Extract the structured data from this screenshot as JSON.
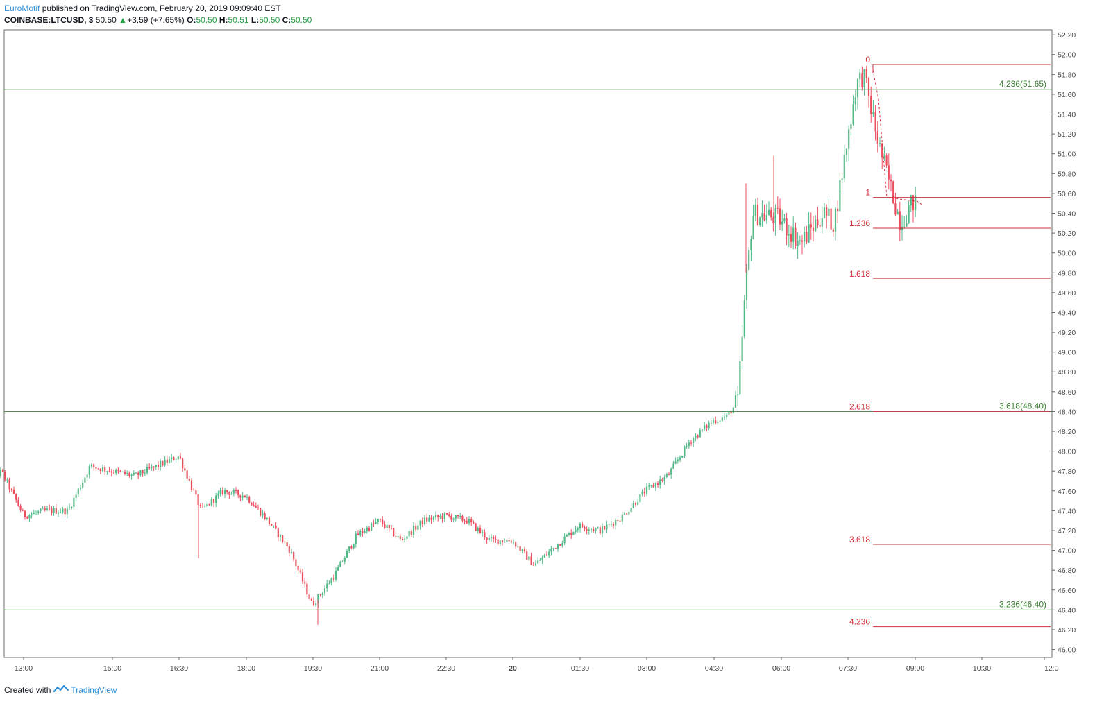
{
  "header": {
    "author": "EuroMotif",
    "published": " published on TradingView.com, February 20, 2019 09:09:40 EST",
    "symbol": "COINBASE:LTCUSD, 3",
    "last": "50.50",
    "change": "+3.59 (+7.65%)",
    "o_label": "O:",
    "o_value": "50.50",
    "h_label": "H:",
    "h_value": "50.51",
    "l_label": "L:",
    "l_value": "50.50",
    "c_label": "C:",
    "c_value": "50.50"
  },
  "footer": {
    "created_with": "Created with",
    "brand": "TradingView"
  },
  "colors": {
    "up": "#53b987",
    "down": "#eb4d5c",
    "green_line": "#3a7d32",
    "red_line": "#d0303a",
    "grid_axis": "#555555"
  },
  "chart_data": {
    "type": "candlestick",
    "title": "COINBASE:LTCUSD, 3",
    "ylim": [
      45.92,
      52.25
    ],
    "y_ticks": [
      46.0,
      46.2,
      46.4,
      46.6,
      46.8,
      47.0,
      47.2,
      47.4,
      47.6,
      47.8,
      48.0,
      48.2,
      48.4,
      48.6,
      48.8,
      49.0,
      49.2,
      49.4,
      49.6,
      49.8,
      50.0,
      50.2,
      50.4,
      50.6,
      50.8,
      51.0,
      51.2,
      51.4,
      51.6,
      51.8,
      52.0,
      52.2
    ],
    "x_ticks": [
      "13:00",
      "15:00",
      "16:30",
      "18:00",
      "19:30",
      "21:00",
      "22:30",
      "20",
      "01:30",
      "03:00",
      "04:30",
      "06:00",
      "07:30",
      "09:00",
      "10:30",
      "12:0"
    ],
    "price_path": [
      [
        "12:00",
        47.55
      ],
      [
        "12:30",
        47.8
      ],
      [
        "13:00",
        47.35
      ],
      [
        "13:30",
        47.4
      ],
      [
        "14:00",
        47.4
      ],
      [
        "14:30",
        47.85
      ],
      [
        "15:00",
        47.8
      ],
      [
        "15:30",
        47.75
      ],
      [
        "16:00",
        47.85
      ],
      [
        "16:30",
        47.95
      ],
      [
        "17:00",
        47.4
      ],
      [
        "17:30",
        47.6
      ],
      [
        "18:00",
        47.55
      ],
      [
        "18:30",
        47.3
      ],
      [
        "19:00",
        47.0
      ],
      [
        "19:30",
        46.45
      ],
      [
        "20:00",
        46.75
      ],
      [
        "20:30",
        47.15
      ],
      [
        "21:00",
        47.3
      ],
      [
        "21:30",
        47.1
      ],
      [
        "22:00",
        47.3
      ],
      [
        "22:30",
        47.35
      ],
      [
        "23:00",
        47.3
      ],
      [
        "23:30",
        47.1
      ],
      [
        "00:00",
        47.1
      ],
      [
        "00:30",
        46.85
      ],
      [
        "01:00",
        47.05
      ],
      [
        "01:30",
        47.25
      ],
      [
        "02:00",
        47.2
      ],
      [
        "02:30",
        47.35
      ],
      [
        "03:00",
        47.6
      ],
      [
        "03:30",
        47.75
      ],
      [
        "04:00",
        48.1
      ],
      [
        "04:30",
        48.3
      ],
      [
        "04:50",
        48.35
      ],
      [
        "05:05",
        48.5
      ],
      [
        "05:15",
        49.6
      ],
      [
        "05:25",
        50.4
      ],
      [
        "06:00",
        50.35
      ],
      [
        "06:30",
        50.1
      ],
      [
        "07:00",
        50.4
      ],
      [
        "07:15",
        50.3
      ],
      [
        "07:30",
        51.0
      ],
      [
        "07:45",
        51.7
      ],
      [
        "07:55",
        51.8
      ],
      [
        "08:15",
        51.1
      ],
      [
        "08:30",
        50.7
      ],
      [
        "08:45",
        50.3
      ],
      [
        "09:00",
        50.5
      ],
      [
        "09:06",
        50.5
      ]
    ],
    "horizontal_levels": [
      {
        "label": "4.236(51.65)",
        "price": 51.65
      },
      {
        "label": "3.618(48.40)",
        "price": 48.4
      },
      {
        "label": "3.236(46.40)",
        "price": 46.4
      }
    ],
    "fib_extension": {
      "levels": [
        {
          "label": "0",
          "price": 51.9
        },
        {
          "label": "1",
          "price": 50.56
        },
        {
          "label": "1.236",
          "price": 50.25
        },
        {
          "label": "1.618",
          "price": 49.74
        },
        {
          "label": "2.618",
          "price": 48.4
        },
        {
          "label": "3.618",
          "price": 47.06
        },
        {
          "label": "4.236",
          "price": 46.23
        }
      ]
    }
  }
}
